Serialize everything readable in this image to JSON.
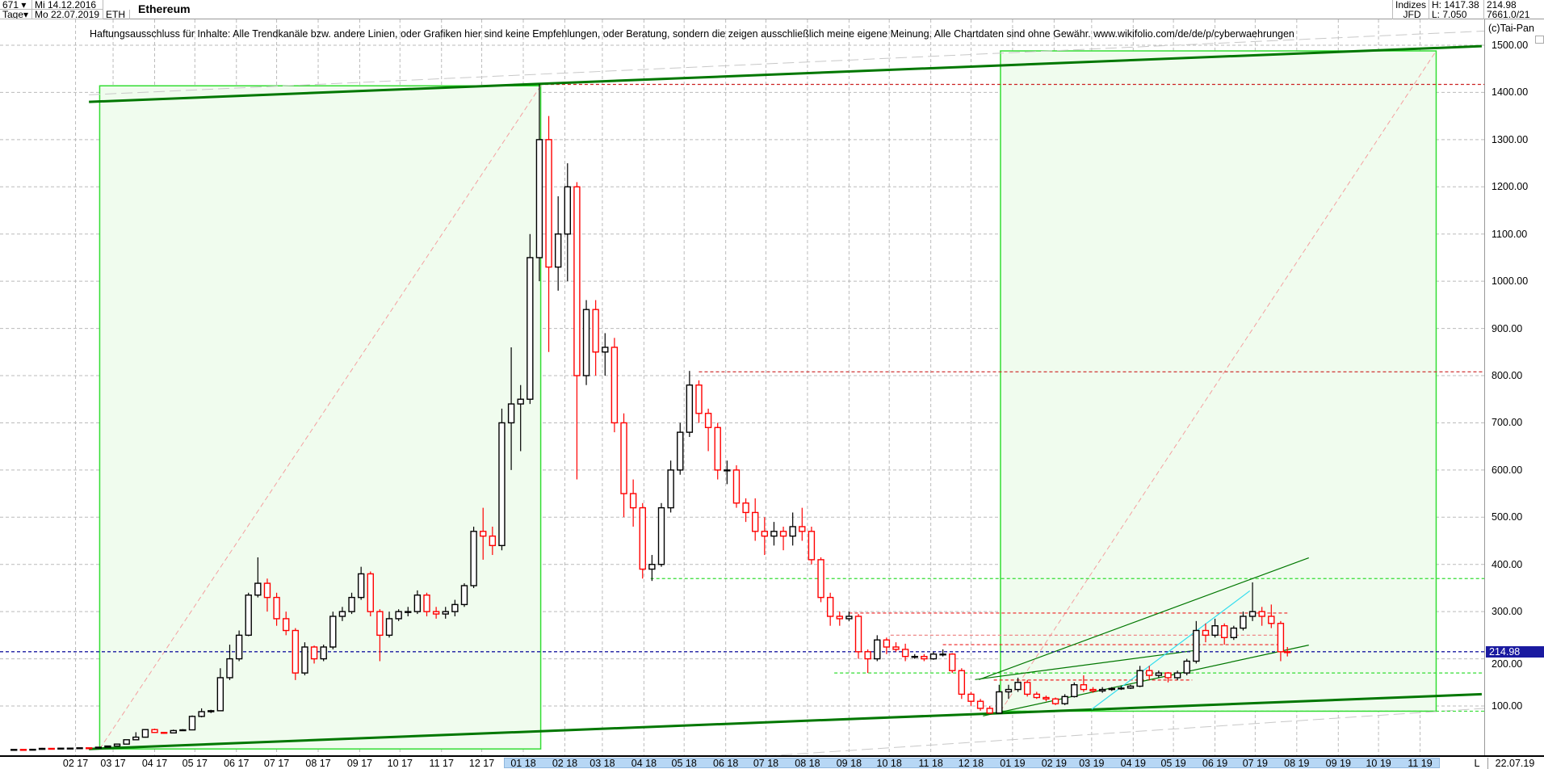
{
  "header": {
    "bars_count": "671",
    "period": "Tage",
    "date_from": "Mi 14.12.2016",
    "date_to": "Mo 22.07.2019",
    "symbol": "ETH",
    "title": "Ethereum",
    "exchange_line1": "Indizes",
    "exchange_line2": "JFD",
    "high": "H: 1417.38",
    "low": "L: 7.050",
    "last": "214.98",
    "volume": "7661.0/21"
  },
  "disclaimer": "Haftungsausschluss für Inhalte: Alle Trendkanäle bzw. andere Linien, oder Grafiken hier sind keine Empfehlungen, oder Beratung, sondern die zeigen ausschließlich meine eigene Meinung. Alle Chartdaten sind ohne Gewähr.  www.wikifolio.com/de/de/p/cyberwaehrungen",
  "copyright": "(c)Tai-Pan",
  "x_axis_end_marker": "L",
  "x_axis_end_date": "22.07.19",
  "colors": {
    "up": "#000000",
    "down": "#ff0000",
    "grid": "#bbbbbb",
    "box_fill": "#f0fcee",
    "box_border": "#33dd33",
    "trend": "#007700",
    "last_price": "#1a1aa0",
    "axis_highlight": "#b7d7f5"
  },
  "chart_data": {
    "type": "candlestick",
    "title": "Ethereum",
    "ylim": [
      -350,
      1550
    ],
    "xlim": [
      "2016-12-14",
      "2019-12-20"
    ],
    "grid": true,
    "y_ticks": [
      100,
      200,
      300,
      400,
      500,
      600,
      700,
      800,
      900,
      1000,
      1100,
      1200,
      1300,
      1400,
      1500
    ],
    "y_tick_labels": [
      "100.00",
      "200.00",
      "300.00",
      "400.00",
      "500.00",
      "600.00",
      "700.00",
      "800.00",
      "900.00",
      "1000.00",
      "1100.00",
      "1200.00",
      "1300.00",
      "1400.00",
      "1500.00"
    ],
    "x_tick_labels": [
      "02 17",
      "03 17",
      "04 17",
      "05 17",
      "06 17",
      "07 17",
      "08 17",
      "09 17",
      "10 17",
      "11 17",
      "12 17",
      "01 18",
      "02 18",
      "03 18",
      "04 18",
      "05 18",
      "06 18",
      "07 18",
      "08 18",
      "09 18",
      "10 18",
      "11 18",
      "12 18",
      "01 19",
      "02 19",
      "03 19",
      "04 19",
      "05 19",
      "06 19",
      "07 19",
      "08 19",
      "09 19",
      "10 19",
      "11 19"
    ],
    "x_axis_highlight": [
      "01 18",
      "11 19"
    ],
    "last_price": 214.98,
    "last_price_label": "214.98",
    "ohlc_fields": [
      "date",
      "open",
      "high",
      "low",
      "close"
    ],
    "ohlc": [
      [
        "2016-12-14",
        7.8,
        8.3,
        7.05,
        7.9
      ],
      [
        "2016-12-21",
        7.9,
        8.2,
        7.2,
        7.6
      ],
      [
        "2016-12-28",
        7.6,
        8.5,
        7.5,
        8.2
      ],
      [
        "2017-01-04",
        8.2,
        11.3,
        8.0,
        10.2
      ],
      [
        "2017-01-11",
        10.2,
        10.6,
        9.6,
        9.8
      ],
      [
        "2017-01-18",
        9.8,
        11.0,
        9.8,
        10.6
      ],
      [
        "2017-01-25",
        10.6,
        10.9,
        10.4,
        10.7
      ],
      [
        "2017-02-01",
        10.7,
        11.6,
        10.6,
        11.4
      ],
      [
        "2017-02-08",
        11.4,
        11.6,
        11.0,
        11.2
      ],
      [
        "2017-02-15",
        11.2,
        12.9,
        11.1,
        12.7
      ],
      [
        "2017-02-22",
        12.7,
        15.8,
        12.6,
        15.2
      ],
      [
        "2017-03-01",
        15.2,
        19.6,
        15.0,
        19.3
      ],
      [
        "2017-03-08",
        19.3,
        28.7,
        18.5,
        28.5
      ],
      [
        "2017-03-15",
        28.5,
        44.5,
        28.0,
        34.0
      ],
      [
        "2017-03-22",
        34.0,
        51.0,
        33.0,
        50.0
      ],
      [
        "2017-03-29",
        50.0,
        52.0,
        43.0,
        44.0
      ],
      [
        "2017-04-05",
        44.0,
        45.0,
        41.0,
        43.0
      ],
      [
        "2017-04-12",
        43.0,
        50.0,
        42.0,
        48.0
      ],
      [
        "2017-04-19",
        48.0,
        51.0,
        47.0,
        49.5
      ],
      [
        "2017-04-26",
        49.5,
        80.0,
        49.0,
        78.0
      ],
      [
        "2017-05-03",
        78.0,
        95.0,
        76.0,
        88.0
      ],
      [
        "2017-05-10",
        88.0,
        92.0,
        85.0,
        90.0
      ],
      [
        "2017-05-17",
        90.0,
        180.0,
        90.0,
        160.0
      ],
      [
        "2017-05-24",
        160.0,
        230.0,
        155.0,
        200.0
      ],
      [
        "2017-05-31",
        200.0,
        260.0,
        195.0,
        250.0
      ],
      [
        "2017-06-07",
        250.0,
        340.0,
        248.0,
        335.0
      ],
      [
        "2017-06-14",
        335.0,
        415.0,
        330.0,
        360.0
      ],
      [
        "2017-06-21",
        360.0,
        370.0,
        300.0,
        330.0
      ],
      [
        "2017-06-28",
        330.0,
        340.0,
        270.0,
        285.0
      ],
      [
        "2017-07-05",
        285.0,
        300.0,
        250.0,
        260.0
      ],
      [
        "2017-07-12",
        260.0,
        265.0,
        155.0,
        170.0
      ],
      [
        "2017-07-19",
        170.0,
        235.0,
        165.0,
        225.0
      ],
      [
        "2017-07-26",
        225.0,
        228.0,
        190.0,
        200.0
      ],
      [
        "2017-08-02",
        200.0,
        230.0,
        195.0,
        225.0
      ],
      [
        "2017-08-09",
        225.0,
        300.0,
        220.0,
        290.0
      ],
      [
        "2017-08-16",
        290.0,
        310.0,
        280.0,
        300.0
      ],
      [
        "2017-08-23",
        300.0,
        340.0,
        295.0,
        330.0
      ],
      [
        "2017-08-30",
        330.0,
        395.0,
        325.0,
        380.0
      ],
      [
        "2017-09-06",
        380.0,
        385.0,
        290.0,
        300.0
      ],
      [
        "2017-09-13",
        300.0,
        305.0,
        195.0,
        250.0
      ],
      [
        "2017-09-20",
        250.0,
        300.0,
        245.0,
        285.0
      ],
      [
        "2017-09-27",
        285.0,
        305.0,
        280.0,
        300.0
      ],
      [
        "2017-10-04",
        300.0,
        310.0,
        290.0,
        300.0
      ],
      [
        "2017-10-11",
        300.0,
        345.0,
        295.0,
        335.0
      ],
      [
        "2017-10-18",
        335.0,
        340.0,
        290.0,
        300.0
      ],
      [
        "2017-10-25",
        300.0,
        310.0,
        285.0,
        295.0
      ],
      [
        "2017-11-01",
        295.0,
        310.0,
        285.0,
        300.0
      ],
      [
        "2017-11-08",
        300.0,
        325.0,
        290.0,
        315.0
      ],
      [
        "2017-11-15",
        315.0,
        360.0,
        310.0,
        355.0
      ],
      [
        "2017-11-22",
        355.0,
        480.0,
        350.0,
        470.0
      ],
      [
        "2017-11-29",
        470.0,
        520.0,
        410.0,
        460.0
      ],
      [
        "2017-12-06",
        460.0,
        480.0,
        420.0,
        440.0
      ],
      [
        "2017-12-13",
        440.0,
        730.0,
        430.0,
        700.0
      ],
      [
        "2017-12-20",
        700.0,
        860.0,
        600.0,
        740.0
      ],
      [
        "2017-12-27",
        740.0,
        780.0,
        640.0,
        750.0
      ],
      [
        "2018-01-03",
        750.0,
        1100.0,
        740.0,
        1050.0
      ],
      [
        "2018-01-10",
        1050.0,
        1417.38,
        1000.0,
        1300.0
      ],
      [
        "2018-01-17",
        1300.0,
        1350.0,
        850.0,
        1030.0
      ],
      [
        "2018-01-24",
        1030.0,
        1180.0,
        980.0,
        1100.0
      ],
      [
        "2018-01-31",
        1100.0,
        1250.0,
        1000.0,
        1200.0
      ],
      [
        "2018-02-07",
        1200.0,
        1210.0,
        580.0,
        800.0
      ],
      [
        "2018-02-14",
        800.0,
        960.0,
        780.0,
        940.0
      ],
      [
        "2018-02-21",
        940.0,
        960.0,
        800.0,
        850.0
      ],
      [
        "2018-02-28",
        850.0,
        890.0,
        800.0,
        860.0
      ],
      [
        "2018-03-07",
        860.0,
        880.0,
        680.0,
        700.0
      ],
      [
        "2018-03-14",
        700.0,
        720.0,
        500.0,
        550.0
      ],
      [
        "2018-03-21",
        550.0,
        580.0,
        480.0,
        520.0
      ],
      [
        "2018-03-28",
        520.0,
        530.0,
        370.0,
        390.0
      ],
      [
        "2018-04-04",
        390.0,
        420.0,
        365.0,
        400.0
      ],
      [
        "2018-04-11",
        400.0,
        530.0,
        395.0,
        520.0
      ],
      [
        "2018-04-18",
        520.0,
        620.0,
        510.0,
        600.0
      ],
      [
        "2018-04-25",
        600.0,
        700.0,
        590.0,
        680.0
      ],
      [
        "2018-05-02",
        680.0,
        810.0,
        670.0,
        780.0
      ],
      [
        "2018-05-09",
        780.0,
        790.0,
        700.0,
        720.0
      ],
      [
        "2018-05-16",
        720.0,
        730.0,
        640.0,
        690.0
      ],
      [
        "2018-05-23",
        690.0,
        700.0,
        580.0,
        600.0
      ],
      [
        "2018-05-30",
        600.0,
        620.0,
        570.0,
        600.0
      ],
      [
        "2018-06-06",
        600.0,
        610.0,
        520.0,
        530.0
      ],
      [
        "2018-06-13",
        530.0,
        540.0,
        490.0,
        510.0
      ],
      [
        "2018-06-20",
        510.0,
        540.0,
        450.0,
        470.0
      ],
      [
        "2018-06-27",
        470.0,
        500.0,
        420.0,
        460.0
      ],
      [
        "2018-07-04",
        460.0,
        490.0,
        440.0,
        470.0
      ],
      [
        "2018-07-11",
        470.0,
        480.0,
        430.0,
        460.0
      ],
      [
        "2018-07-18",
        460.0,
        510.0,
        440.0,
        480.0
      ],
      [
        "2018-07-25",
        480.0,
        520.0,
        450.0,
        470.0
      ],
      [
        "2018-08-01",
        470.0,
        480.0,
        400.0,
        410.0
      ],
      [
        "2018-08-08",
        410.0,
        415.0,
        320.0,
        330.0
      ],
      [
        "2018-08-15",
        330.0,
        340.0,
        270.0,
        290.0
      ],
      [
        "2018-08-22",
        290.0,
        300.0,
        270.0,
        285.0
      ],
      [
        "2018-08-29",
        285.0,
        300.0,
        280.0,
        290.0
      ],
      [
        "2018-09-05",
        290.0,
        295.0,
        200.0,
        215.0
      ],
      [
        "2018-09-12",
        215.0,
        220.0,
        170.0,
        200.0
      ],
      [
        "2018-09-19",
        200.0,
        250.0,
        195.0,
        240.0
      ],
      [
        "2018-09-26",
        240.0,
        245.0,
        210.0,
        225.0
      ],
      [
        "2018-10-03",
        225.0,
        235.0,
        215.0,
        220.0
      ],
      [
        "2018-10-10",
        220.0,
        232.0,
        195.0,
        205.0
      ],
      [
        "2018-10-17",
        205.0,
        210.0,
        200.0,
        205.0
      ],
      [
        "2018-10-24",
        205.0,
        210.0,
        195.0,
        200.0
      ],
      [
        "2018-10-31",
        200.0,
        215.0,
        198.0,
        210.0
      ],
      [
        "2018-11-07",
        210.0,
        220.0,
        205.0,
        210.0
      ],
      [
        "2018-11-14",
        210.0,
        212.0,
        170.0,
        175.0
      ],
      [
        "2018-11-21",
        175.0,
        180.0,
        115.0,
        125.0
      ],
      [
        "2018-11-28",
        125.0,
        130.0,
        100.0,
        110.0
      ],
      [
        "2018-12-05",
        110.0,
        115.0,
        90.0,
        95.0
      ],
      [
        "2018-12-12",
        95.0,
        100.0,
        83.0,
        85.0
      ],
      [
        "2018-12-19",
        85.0,
        145.0,
        84.0,
        130.0
      ],
      [
        "2018-12-26",
        130.0,
        145.0,
        115.0,
        135.0
      ],
      [
        "2019-01-02",
        135.0,
        160.0,
        130.0,
        150.0
      ],
      [
        "2019-01-09",
        150.0,
        155.0,
        120.0,
        125.0
      ],
      [
        "2019-01-16",
        125.0,
        130.0,
        115.0,
        118.0
      ],
      [
        "2019-01-23",
        118.0,
        122.0,
        110.0,
        115.0
      ],
      [
        "2019-01-30",
        115.0,
        118.0,
        102.0,
        105.0
      ],
      [
        "2019-02-06",
        105.0,
        125.0,
        102.0,
        120.0
      ],
      [
        "2019-02-13",
        120.0,
        150.0,
        118.0,
        145.0
      ],
      [
        "2019-02-20",
        145.0,
        165.0,
        130.0,
        135.0
      ],
      [
        "2019-02-27",
        135.0,
        140.0,
        128.0,
        132.0
      ],
      [
        "2019-03-06",
        132.0,
        140.0,
        128.0,
        135.0
      ],
      [
        "2019-03-13",
        135.0,
        140.0,
        132.0,
        137.0
      ],
      [
        "2019-03-20",
        137.0,
        142.0,
        134.0,
        138.0
      ],
      [
        "2019-03-27",
        138.0,
        145.0,
        136.0,
        142.0
      ],
      [
        "2019-04-03",
        142.0,
        185.0,
        140.0,
        175.0
      ],
      [
        "2019-04-10",
        175.0,
        185.0,
        155.0,
        165.0
      ],
      [
        "2019-04-17",
        165.0,
        175.0,
        160.0,
        170.0
      ],
      [
        "2019-04-24",
        170.0,
        172.0,
        150.0,
        160.0
      ],
      [
        "2019-05-01",
        160.0,
        175.0,
        155.0,
        170.0
      ],
      [
        "2019-05-08",
        170.0,
        200.0,
        165.0,
        195.0
      ],
      [
        "2019-05-15",
        195.0,
        280.0,
        190.0,
        260.0
      ],
      [
        "2019-05-22",
        260.0,
        275.0,
        235.0,
        250.0
      ],
      [
        "2019-05-29",
        250.0,
        285.0,
        245.0,
        270.0
      ],
      [
        "2019-06-05",
        270.0,
        275.0,
        230.0,
        245.0
      ],
      [
        "2019-06-12",
        245.0,
        270.0,
        240.0,
        265.0
      ],
      [
        "2019-06-19",
        265.0,
        300.0,
        260.0,
        290.0
      ],
      [
        "2019-06-26",
        290.0,
        362.0,
        280.0,
        300.0
      ],
      [
        "2019-07-03",
        300.0,
        310.0,
        270.0,
        290.0
      ],
      [
        "2019-07-10",
        290.0,
        315.0,
        265.0,
        275.0
      ],
      [
        "2019-07-17",
        275.0,
        280.0,
        195.0,
        215.0
      ],
      [
        "2019-07-22",
        215.0,
        225.0,
        205.0,
        214.98
      ]
    ],
    "annotations": {
      "boxes": [
        {
          "from": "2017-02-19",
          "to": "2018-01-14",
          "low": 9,
          "high": 1414
        },
        {
          "from": "2018-12-23",
          "to": "2019-11-13",
          "low": 89,
          "high": 1488
        }
      ],
      "box_diagonals": [
        {
          "from": [
            "2017-02-19",
            9
          ],
          "to": [
            "2018-01-14",
            1414
          ]
        },
        {
          "from": [
            "2018-12-23",
            89
          ],
          "to": [
            "2019-11-13",
            1488
          ]
        }
      ],
      "thick_trendlines": [
        {
          "from": [
            "2017-02-11",
            1380
          ],
          "to": [
            "2019-12-17",
            1498
          ]
        },
        {
          "from": [
            "2017-02-11",
            9
          ],
          "to": [
            "2019-12-17",
            125
          ]
        }
      ],
      "thin_trendlines": [
        {
          "from": [
            "2018-12-07",
            156
          ],
          "to": [
            "2019-08-10",
            414
          ],
          "color": "#007700"
        },
        {
          "from": [
            "2018-12-10",
            79
          ],
          "to": [
            "2019-08-10",
            229
          ],
          "color": "#007700"
        },
        {
          "from": [
            "2018-12-04",
            156
          ],
          "to": [
            "2019-05-18",
            218
          ],
          "color": "#007700"
        },
        {
          "from": [
            "2019-03-01",
            93
          ],
          "to": [
            "2019-06-27",
            344
          ],
          "color": "#33ddee"
        }
      ],
      "levels": [
        {
          "price": 1417,
          "from": "2018-01-13",
          "to": "2019-12-20",
          "color": "#cc2222"
        },
        {
          "price": 808,
          "from": "2018-05-12",
          "to": "2019-12-20",
          "color": "#cc2222"
        },
        {
          "price": 370,
          "from": "2018-04-06",
          "to": "2019-12-20",
          "color": "#33dd33"
        },
        {
          "price": 297,
          "from": "2018-09-01",
          "to": "2019-07-25",
          "color": "#ee2222"
        },
        {
          "price": 250,
          "from": "2018-10-02",
          "to": "2019-07-20",
          "color": "#ee8888"
        },
        {
          "price": 230,
          "from": "2018-11-10",
          "to": "2019-07-20",
          "color": "#ee2222"
        },
        {
          "price": 170,
          "from": "2018-08-21",
          "to": "2019-12-20",
          "color": "#33dd33"
        },
        {
          "price": 155,
          "from": "2018-12-18",
          "to": "2019-05-15",
          "color": "#ee2222"
        },
        {
          "price": 89,
          "from": "2018-12-23",
          "to": "2019-12-20",
          "color": "#33dd33"
        }
      ]
    }
  }
}
